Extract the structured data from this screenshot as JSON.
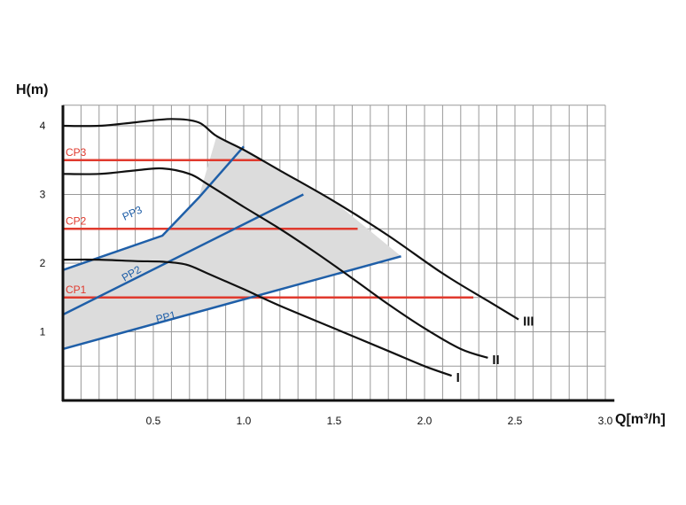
{
  "chart_data": {
    "type": "line",
    "title": "",
    "xlabel": "Q[m³/h]",
    "ylabel": "H(m)",
    "xlim": [
      0,
      3.05
    ],
    "ylim": [
      0,
      4.3
    ],
    "grid": true,
    "x_ticks": [
      "0.5",
      "1.0",
      "1.5",
      "2.0",
      "2.5",
      "3.0"
    ],
    "y_ticks": [
      "1",
      "2",
      "3",
      "4"
    ],
    "colors": {
      "speed": "#111111",
      "constant_pressure": "#e03a2e",
      "proportional_pressure": "#1f5fa8",
      "shaded_area": "#dcdcdc",
      "grid": "#999999"
    },
    "speed_curves": [
      {
        "name": "I",
        "points": [
          [
            0,
            2.05
          ],
          [
            0.2,
            2.05
          ],
          [
            0.4,
            2.03
          ],
          [
            0.55,
            2.02
          ],
          [
            0.68,
            1.98
          ],
          [
            0.8,
            1.85
          ],
          [
            1.0,
            1.62
          ],
          [
            1.2,
            1.38
          ],
          [
            1.5,
            1.05
          ],
          [
            1.8,
            0.72
          ],
          [
            2.0,
            0.5
          ],
          [
            2.15,
            0.36
          ]
        ]
      },
      {
        "name": "II",
        "points": [
          [
            0,
            3.3
          ],
          [
            0.2,
            3.3
          ],
          [
            0.4,
            3.35
          ],
          [
            0.55,
            3.38
          ],
          [
            0.7,
            3.3
          ],
          [
            0.8,
            3.15
          ],
          [
            1.0,
            2.82
          ],
          [
            1.2,
            2.5
          ],
          [
            1.4,
            2.15
          ],
          [
            1.6,
            1.78
          ],
          [
            1.8,
            1.4
          ],
          [
            2.0,
            1.05
          ],
          [
            2.2,
            0.75
          ],
          [
            2.35,
            0.62
          ]
        ]
      },
      {
        "name": "III",
        "points": [
          [
            0,
            4.0
          ],
          [
            0.2,
            4.0
          ],
          [
            0.4,
            4.05
          ],
          [
            0.6,
            4.1
          ],
          [
            0.75,
            4.05
          ],
          [
            0.85,
            3.85
          ],
          [
            1.0,
            3.65
          ],
          [
            1.2,
            3.35
          ],
          [
            1.5,
            2.9
          ],
          [
            1.8,
            2.4
          ],
          [
            2.1,
            1.85
          ],
          [
            2.35,
            1.45
          ],
          [
            2.52,
            1.18
          ]
        ]
      }
    ],
    "constant_pressure": [
      {
        "name": "CP1",
        "head": 1.5,
        "x_end": 2.27
      },
      {
        "name": "CP2",
        "head": 2.5,
        "x_end": 1.63
      },
      {
        "name": "CP3",
        "head": 3.5,
        "x_end": 1.1
      }
    ],
    "proportional_pressure": [
      {
        "name": "PP1",
        "points": [
          [
            0,
            0.75
          ],
          [
            1.87,
            2.1
          ]
        ]
      },
      {
        "name": "PP2",
        "points": [
          [
            0,
            1.25
          ],
          [
            1.33,
            3.0
          ]
        ]
      },
      {
        "name": "PP3",
        "points": [
          [
            0,
            1.9
          ],
          [
            0.55,
            2.4
          ],
          [
            0.75,
            2.95
          ],
          [
            1.0,
            3.7
          ]
        ]
      }
    ],
    "shaded_region_outline": [
      [
        0,
        0.75
      ],
      [
        1.87,
        2.1
      ],
      [
        1.5,
        2.9
      ],
      [
        1.0,
        3.65
      ],
      [
        0.85,
        3.85
      ],
      [
        0.75,
        2.95
      ],
      [
        0.55,
        2.4
      ],
      [
        0,
        1.9
      ]
    ]
  }
}
